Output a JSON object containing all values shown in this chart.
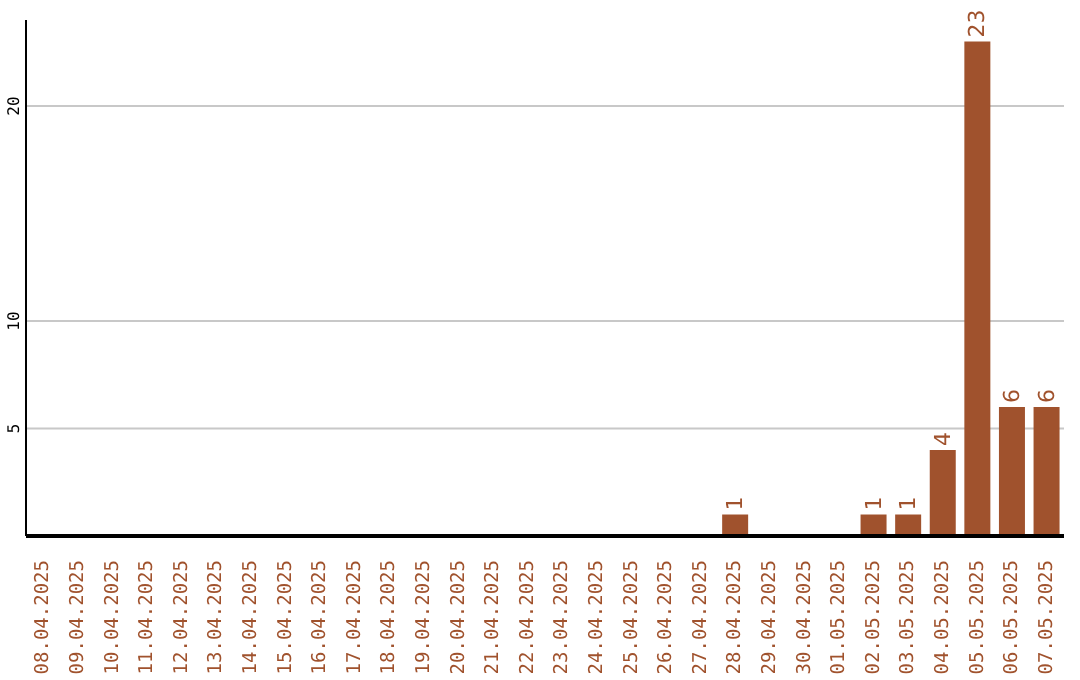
{
  "chart_data": {
    "type": "bar",
    "categories": [
      "08.04.2025",
      "09.04.2025",
      "10.04.2025",
      "11.04.2025",
      "12.04.2025",
      "13.04.2025",
      "14.04.2025",
      "15.04.2025",
      "16.04.2025",
      "17.04.2025",
      "18.04.2025",
      "19.04.2025",
      "20.04.2025",
      "21.04.2025",
      "22.04.2025",
      "23.04.2025",
      "24.04.2025",
      "25.04.2025",
      "26.04.2025",
      "27.04.2025",
      "28.04.2025",
      "29.04.2025",
      "30.04.2025",
      "01.05.2025",
      "02.05.2025",
      "03.05.2025",
      "04.05.2025",
      "05.05.2025",
      "06.05.2025",
      "07.05.2025"
    ],
    "values": [
      0,
      0,
      0,
      0,
      0,
      0,
      0,
      0,
      0,
      0,
      0,
      0,
      0,
      0,
      0,
      0,
      0,
      0,
      0,
      0,
      1,
      0,
      0,
      0,
      1,
      1,
      4,
      23,
      6,
      6
    ],
    "value_labels": [
      null,
      null,
      null,
      null,
      null,
      null,
      null,
      null,
      null,
      null,
      null,
      null,
      null,
      null,
      null,
      null,
      null,
      null,
      null,
      null,
      "1",
      null,
      null,
      null,
      "1",
      "1",
      "4",
      "23",
      "6",
      "6"
    ],
    "color": "#a0522d",
    "ylim": [
      0,
      24
    ],
    "yticks": [
      5,
      10,
      20
    ],
    "grid": "y",
    "legend": false
  }
}
